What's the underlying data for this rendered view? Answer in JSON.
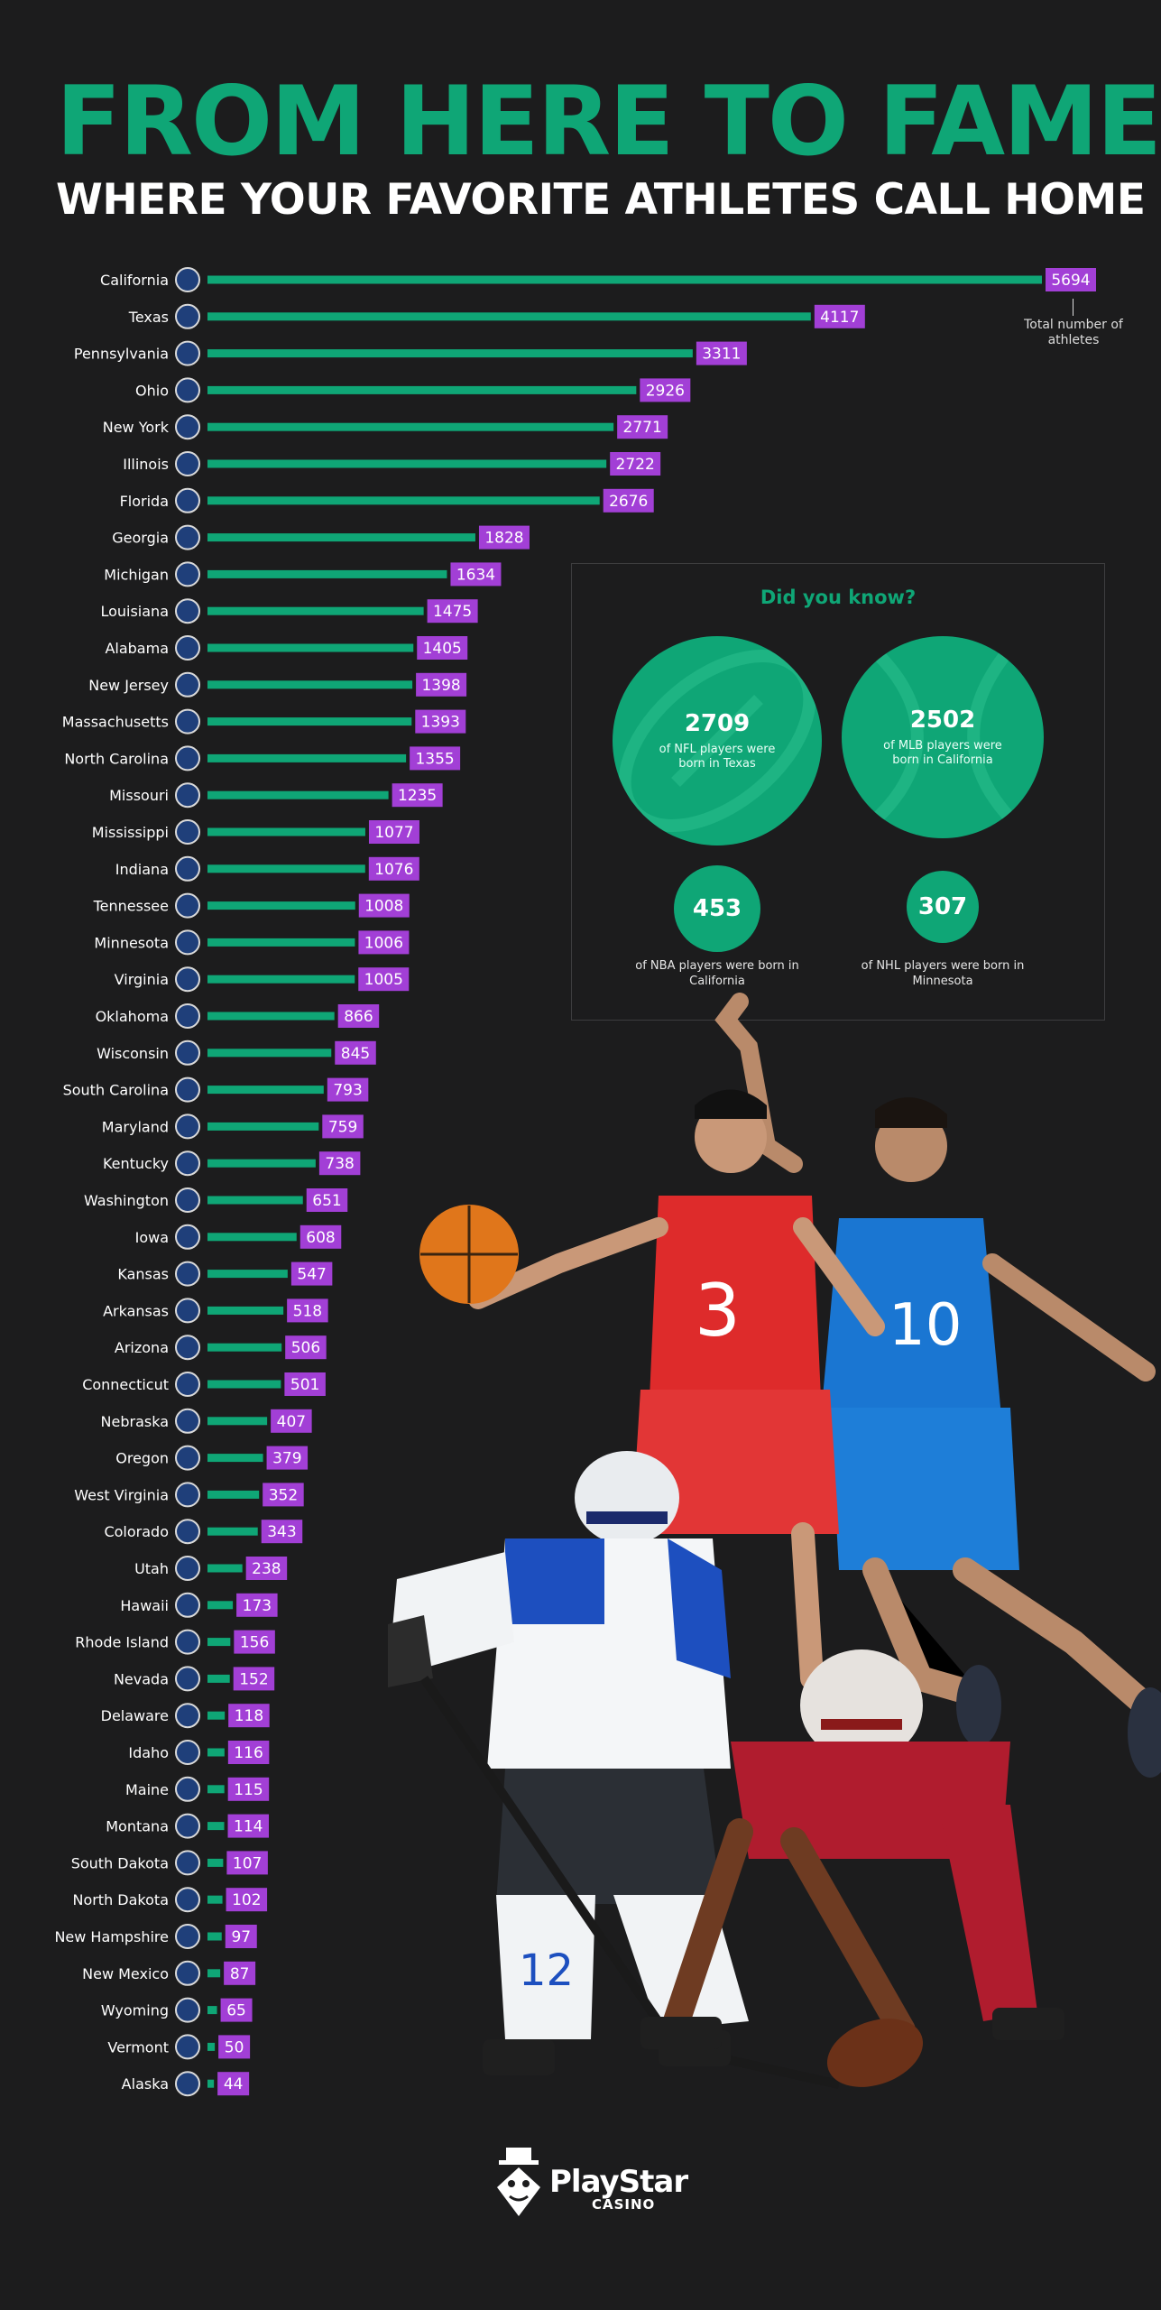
{
  "header": {
    "title": "FROM HERE TO FAME",
    "subtitle": "WHERE YOUR FAVORITE ATHLETES CALL HOME"
  },
  "colors": {
    "background": "#1c1c1d",
    "accent_green": "#0fa676",
    "value_purple": "#a23fd6",
    "text": "#ffffff"
  },
  "chart_data": {
    "type": "bar",
    "orientation": "horizontal",
    "title": "WHERE YOUR FAVORITE ATHLETES CALL HOME",
    "xlabel": "",
    "ylabel": "",
    "categories": [
      "California",
      "Texas",
      "Pennsylvania",
      "Ohio",
      "New York",
      "Illinois",
      "Florida",
      "Georgia",
      "Michigan",
      "Louisiana",
      "Alabama",
      "New Jersey",
      "Massachusetts",
      "North Carolina",
      "Missouri",
      "Mississippi",
      "Indiana",
      "Tennessee",
      "Minnesota",
      "Virginia",
      "Oklahoma",
      "Wisconsin",
      "South Carolina",
      "Maryland",
      "Kentucky",
      "Washington",
      "Iowa",
      "Kansas",
      "Arkansas",
      "Arizona",
      "Connecticut",
      "Nebraska",
      "Oregon",
      "West Virginia",
      "Colorado",
      "Utah",
      "Hawaii",
      "Rhode Island",
      "Nevada",
      "Delaware",
      "Idaho",
      "Maine",
      "Montana",
      "South Dakota",
      "North Dakota",
      "New Hampshire",
      "New Mexico",
      "Wyoming",
      "Vermont",
      "Alaska"
    ],
    "values": [
      5694,
      4117,
      3311,
      2926,
      2771,
      2722,
      2676,
      1828,
      1634,
      1475,
      1405,
      1398,
      1393,
      1355,
      1235,
      1077,
      1076,
      1008,
      1006,
      1005,
      866,
      845,
      793,
      759,
      738,
      651,
      608,
      547,
      518,
      506,
      501,
      407,
      379,
      352,
      343,
      238,
      173,
      156,
      152,
      118,
      116,
      115,
      114,
      107,
      102,
      97,
      87,
      65,
      50,
      44
    ],
    "xlim": [
      0,
      5694
    ],
    "grid": false,
    "legend": "none",
    "annotation": "Total number of athletes"
  },
  "did_you_know": {
    "title": "Did you know?",
    "facts": [
      {
        "value": "2709",
        "text": "of NFL players were born in Texas",
        "icon": "football-icon"
      },
      {
        "value": "2502",
        "text": "of MLB players were born in California",
        "icon": "baseball-icon"
      },
      {
        "value": "453",
        "text": "of NBA players were born in California",
        "icon": "basketball-icon"
      },
      {
        "value": "307",
        "text": "of NHL players were born in Minnesota",
        "icon": "hockey-icon"
      }
    ]
  },
  "footer": {
    "brand": "PlayStar",
    "sub": "CASINO"
  }
}
